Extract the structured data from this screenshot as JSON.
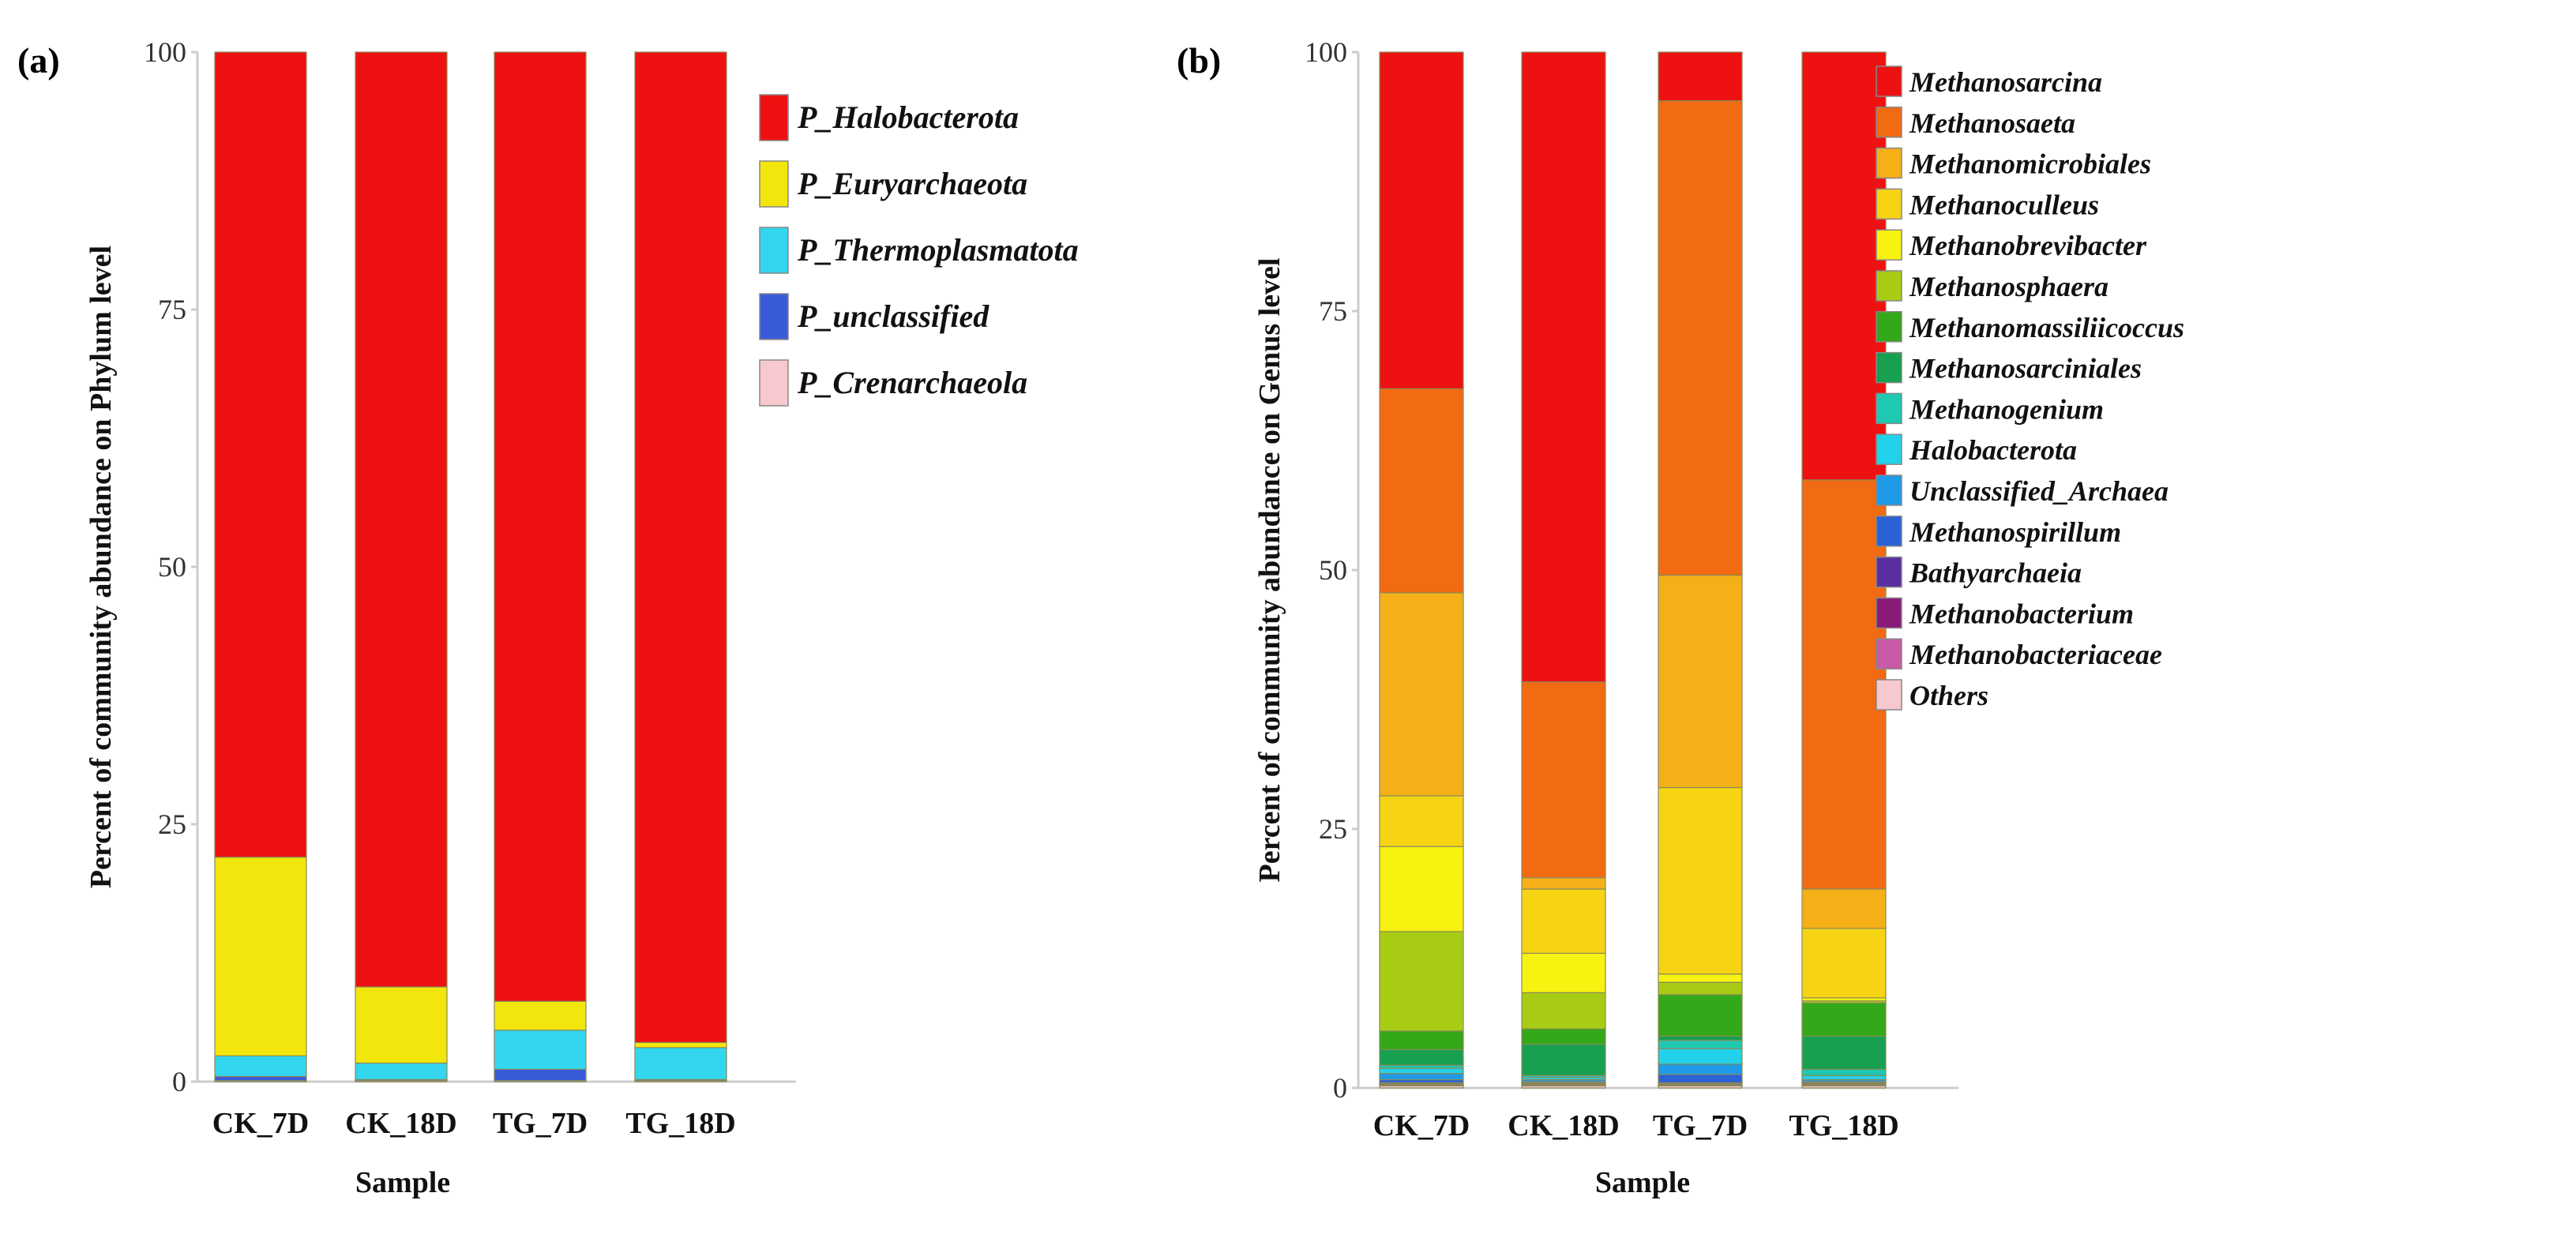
{
  "chart_data": [
    {
      "type": "bar",
      "stacked": true,
      "panel_label": "(a)",
      "categories": [
        "CK_7D",
        "CK_18D",
        "TG_7D",
        "TG_18D"
      ],
      "xlabel": "Sample",
      "ylabel": "Percent of community  abundance on Phylum level",
      "ylim": [
        0,
        100
      ],
      "yticks": [
        "0",
        "25",
        "50",
        "75",
        "100"
      ],
      "legend_position": "right",
      "series": [
        {
          "name": "P_Halobacterota",
          "color": "#ee1111",
          "values": [
            78.2,
            90.8,
            92.2,
            96.2
          ]
        },
        {
          "name": "P_Euryarchaeota",
          "color": "#f2e60c",
          "values": [
            19.3,
            7.4,
            2.8,
            0.5
          ]
        },
        {
          "name": "P_Thermoplasmatota",
          "color": "#33d6ee",
          "values": [
            2.0,
            1.6,
            3.8,
            3.1
          ]
        },
        {
          "name": "P_unclassified",
          "color": "#3a5bd9",
          "values": [
            0.4,
            0.1,
            1.1,
            0.1
          ]
        },
        {
          "name": "P_Crenarchaeola",
          "color": "#f7c9cf",
          "values": [
            0.1,
            0.1,
            0.1,
            0.1
          ]
        }
      ]
    },
    {
      "type": "bar",
      "stacked": true,
      "panel_label": "(b)",
      "categories": [
        "CK_7D",
        "CK_18D",
        "TG_7D",
        "TG_18D"
      ],
      "xlabel": "Sample",
      "ylabel": "Percent of community  abundance on Genus level",
      "ylim": [
        0,
        100
      ],
      "yticks": [
        "0",
        "25",
        "50",
        "75",
        "100"
      ],
      "legend_position": "right",
      "series": [
        {
          "name": "Others",
          "color": "#f8c8cf",
          "values": [
            0.2,
            0.2,
            0.2,
            0.2
          ]
        },
        {
          "name": "Methanobacteriaceae",
          "color": "#c85aa8",
          "values": [
            0.1,
            0.1,
            0.1,
            0.1
          ]
        },
        {
          "name": "Methanobacterium",
          "color": "#8a1a78",
          "values": [
            0.1,
            0.1,
            0.1,
            0.1
          ]
        },
        {
          "name": "Bathyarchaeia",
          "color": "#5a2fa0",
          "values": [
            0.1,
            0.1,
            0.1,
            0.1
          ]
        },
        {
          "name": "Methanospirillum",
          "color": "#2b62d6",
          "values": [
            0.3,
            0.1,
            0.8,
            0.1
          ]
        },
        {
          "name": "Unclassified_Archaea",
          "color": "#1f9ae8",
          "values": [
            0.6,
            0.2,
            1.0,
            0.2
          ]
        },
        {
          "name": "Halobacterota",
          "color": "#22d2ea",
          "values": [
            0.5,
            0.2,
            1.5,
            0.4
          ]
        },
        {
          "name": "Methanogenium",
          "color": "#1fc8b0",
          "values": [
            0.3,
            0.2,
            0.8,
            0.6
          ]
        },
        {
          "name": "Methanosarciniales",
          "color": "#16a050",
          "values": [
            1.5,
            3.0,
            0.4,
            3.2
          ]
        },
        {
          "name": "Methanomassiliicoccus",
          "color": "#33a818",
          "values": [
            1.8,
            1.5,
            4.0,
            3.2
          ]
        },
        {
          "name": "Methanosphaera",
          "color": "#a8cc14",
          "values": [
            9.6,
            3.5,
            1.2,
            0.2
          ]
        },
        {
          "name": "Methanobrevibacter",
          "color": "#f7f210",
          "values": [
            8.2,
            3.8,
            0.8,
            0.3
          ]
        },
        {
          "name": "Methanoculleus",
          "color": "#f6d414",
          "values": [
            4.9,
            6.2,
            18.0,
            6.7
          ]
        },
        {
          "name": "Methanomicrobiales",
          "color": "#f5b018",
          "values": [
            19.6,
            1.1,
            20.5,
            3.8
          ]
        },
        {
          "name": "Methanosaeta",
          "color": "#f26a12",
          "values": [
            19.7,
            18.9,
            45.8,
            39.5
          ]
        },
        {
          "name": "Methanosarcina",
          "color": "#ee1111",
          "values": [
            32.6,
            61.0,
            5.0,
            41.3
          ]
        }
      ],
      "legend_order": [
        "Methanosarcina",
        "Methanosaeta",
        "Methanomicrobiales",
        "Methanoculleus",
        "Methanobrevibacter",
        "Methanosphaera",
        "Methanomassiliicoccus",
        "Methanosarciniales",
        "Methanogenium",
        "Halobacterota",
        "Unclassified_Archaea",
        "Methanospirillum",
        "Bathyarchaeia",
        "Methanobacterium",
        "Methanobacteriaceae",
        "Others"
      ]
    }
  ]
}
